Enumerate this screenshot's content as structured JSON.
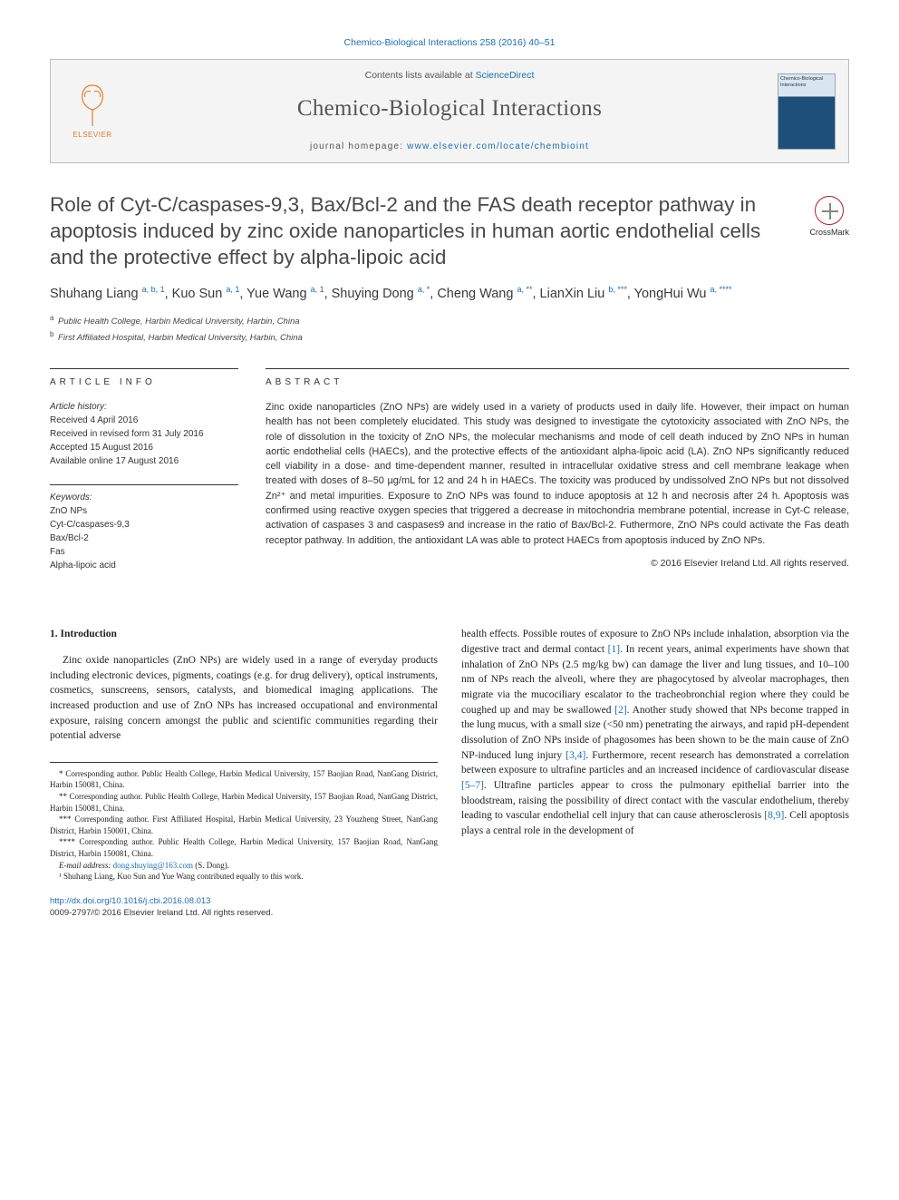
{
  "runhead": "Chemico-Biological Interactions 258 (2016) 40–51",
  "masthead": {
    "avail_pre": "Contents lists available at ",
    "avail_link": "ScienceDirect",
    "journal": "Chemico-Biological Interactions",
    "home_pre": "journal homepage: ",
    "home_link": "www.elsevier.com/locate/chembioint",
    "publisher": "ELSEVIER",
    "cover_label": "Chemico-Biological Interactions"
  },
  "crossmark_label": "CrossMark",
  "title": "Role of Cyt-C/caspases-9,3, Bax/Bcl-2 and the FAS death receptor pathway in apoptosis induced by zinc oxide nanoparticles in human aortic endothelial cells and the protective effect by alpha-lipoic acid",
  "authors_html": "Shuhang Liang <sup>a, b, 1</sup>, Kuo Sun <sup>a, 1</sup>, Yue Wang <sup>a, 1</sup>, Shuying Dong <sup>a, *</sup>, Cheng Wang <sup>a, **</sup>, LianXin Liu <sup>b, ***</sup>, YongHui Wu <sup>a, ****</sup>",
  "affiliations": [
    {
      "sup": "a",
      "text": "Public Health College, Harbin Medical University, Harbin, China"
    },
    {
      "sup": "b",
      "text": "First Affiliated Hospital, Harbin Medical University, Harbin, China"
    }
  ],
  "sections": {
    "info_head": "ARTICLE INFO",
    "abs_head": "ABSTRACT"
  },
  "history": {
    "label": "Article history:",
    "received": "Received 4 April 2016",
    "revised": "Received in revised form 31 July 2016",
    "accepted": "Accepted 15 August 2016",
    "online": "Available online 17 August 2016"
  },
  "keywords": {
    "label": "Keywords:",
    "items": [
      "ZnO NPs",
      "Cyt-C/caspases-9,3",
      "Bax/Bcl-2",
      "Fas",
      "Alpha-lipoic acid"
    ]
  },
  "abstract": "Zinc oxide nanoparticles (ZnO NPs) are widely used in a variety of products used in daily life. However, their impact on human health has not been completely elucidated. This study was designed to investigate the cytotoxicity associated with ZnO NPs, the role of dissolution in the toxicity of ZnO NPs, the molecular mechanisms and mode of cell death induced by ZnO NPs in human aortic endothelial cells (HAECs), and the protective effects of the antioxidant alpha-lipoic acid (LA). ZnO NPs significantly reduced cell viability in a dose- and time-dependent manner, resulted in intracellular oxidative stress and cell membrane leakage when treated with doses of 8–50 µg/mL for 12 and 24 h in HAECs. The toxicity was produced by undissolved ZnO NPs but not dissolved Zn²⁺ and metal impurities. Exposure to ZnO NPs was found to induce apoptosis at 12 h and necrosis after 24 h. Apoptosis was confirmed using reactive oxygen species that triggered a decrease in mitochondria membrane potential, increase in Cyt-C release, activation of caspases 3 and caspases9 and increase in the ratio of Bax/Bcl-2. Futhermore, ZnO NPs could activate the Fas death receptor pathway. In addition, the antioxidant LA was able to protect HAECs from apoptosis induced by ZnO NPs.",
  "abs_copyright": "© 2016 Elsevier Ireland Ltd. All rights reserved.",
  "intro_head": "1. Introduction",
  "intro_col1": "Zinc oxide nanoparticles (ZnO NPs) are widely used in a range of everyday products including electronic devices, pigments, coatings (e.g. for drug delivery), optical instruments, cosmetics, sunscreens, sensors, catalysts, and biomedical imaging applications. The increased production and use of ZnO NPs has increased occupational and environmental exposure, raising concern amongst the public and scientific communities regarding their potential adverse",
  "intro_col2_p1": "health effects. Possible routes of exposure to ZnO NPs include inhalation, absorption via the digestive tract and dermal contact ",
  "intro_col2_p2": ". In recent years, animal experiments have shown that inhalation of ZnO NPs (2.5 mg/kg bw) can damage the liver and lung tissues, and 10–100 nm of NPs reach the alveoli, where they are phagocytosed by alveolar macrophages, then migrate via the mucociliary escalator to the tracheobronchial region where they could be coughed up and may be swallowed ",
  "intro_col2_p3": ". Another study showed that NPs become trapped in the lung mucus, with a small size (<50 nm) penetrating the airways, and rapid pH-dependent dissolution of ZnO NPs inside of phagosomes has been shown to be the main cause of ZnO NP-induced lung injury ",
  "intro_col2_p4": ". Furthermore, recent research has demonstrated a correlation between exposure to ultrafine particles and an increased incidence of cardiovascular disease ",
  "intro_col2_p5": ". Ultrafine particles appear to cross the pulmonary epithelial barrier into the bloodstream, raising the possibility of direct contact with the vascular endothelium, thereby leading to vascular endothelial cell injury that can cause atherosclerosis ",
  "intro_col2_p6": ". Cell apoptosis plays a central role in the development of",
  "cites": {
    "c1": "[1]",
    "c2": "[2]",
    "c34": "[3,4]",
    "c57": "[5–7]",
    "c89": "[8,9]"
  },
  "footnotes": {
    "f1": "* Corresponding author. Public Health College, Harbin Medical University, 157 Baojian Road, NanGang District, Harbin 150081, China.",
    "f2": "** Corresponding author. Public Health College, Harbin Medical University, 157 Baojian Road, NanGang District, Harbin 150081, China.",
    "f3": "*** Corresponding author. First Affiliated Hospital, Harbin Medical University, 23 Youzheng Street, NanGang District, Harbin 150001, China.",
    "f4": "**** Corresponding author. Public Health College, Harbin Medical University, 157 Baojian Road, NanGang District, Harbin 150081, China.",
    "email_label": "E-mail address: ",
    "email": "dong.shuying@163.com",
    "email_post": " (S. Dong).",
    "note1": "¹ Shuhang Liang, Kuo Sun and Yue Wang contributed equally to this work."
  },
  "footer": {
    "doi": "http://dx.doi.org/10.1016/j.cbi.2016.08.013",
    "issn_copy": "0009-2797/© 2016 Elsevier Ireland Ltd. All rights reserved."
  },
  "colors": {
    "link": "#1a6fb0",
    "text": "#2a2a2a",
    "rule": "#333333",
    "box_border": "#bcbcbc",
    "box_bg": "#f4f4f4",
    "elsevier": "#e37b22"
  }
}
